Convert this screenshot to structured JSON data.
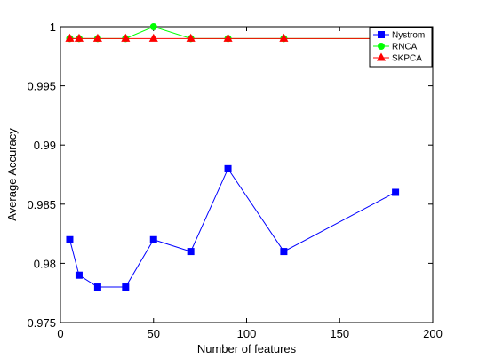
{
  "chart_data": {
    "type": "line",
    "title": "",
    "xlabel": "Number of features",
    "ylabel": "Average Accuracy",
    "xlim": [
      0,
      200
    ],
    "ylim": [
      0.975,
      1.0
    ],
    "xticks": [
      0,
      50,
      100,
      150,
      200
    ],
    "yticks": [
      0.975,
      0.98,
      0.985,
      0.99,
      0.995,
      1.0
    ],
    "xtick_labels": [
      "0",
      "50",
      "100",
      "150",
      "200"
    ],
    "ytick_labels": [
      "0.975",
      "0.98",
      "0.985",
      "0.99",
      "0.995",
      "1"
    ],
    "grid": false,
    "legend": "top-right",
    "series": [
      {
        "name": "Nystrom",
        "color": "#0000ff",
        "marker": "square",
        "x": [
          5,
          10,
          20,
          35,
          50,
          70,
          90,
          120,
          180
        ],
        "y": [
          0.982,
          0.979,
          0.978,
          0.978,
          0.982,
          0.981,
          0.988,
          0.981,
          0.986
        ]
      },
      {
        "name": "RNCA",
        "color": "#00ff00",
        "marker": "circle",
        "x": [
          5,
          10,
          20,
          35,
          50,
          70,
          90,
          120,
          180
        ],
        "y": [
          0.999,
          0.999,
          0.999,
          0.999,
          1.0,
          0.999,
          0.999,
          0.999,
          0.999
        ]
      },
      {
        "name": "SKPCA",
        "color": "#ff0000",
        "marker": "triangle",
        "x": [
          5,
          10,
          20,
          35,
          50,
          70,
          90,
          120,
          180
        ],
        "y": [
          0.999,
          0.999,
          0.999,
          0.999,
          0.999,
          0.999,
          0.999,
          0.999,
          0.999
        ]
      }
    ]
  }
}
